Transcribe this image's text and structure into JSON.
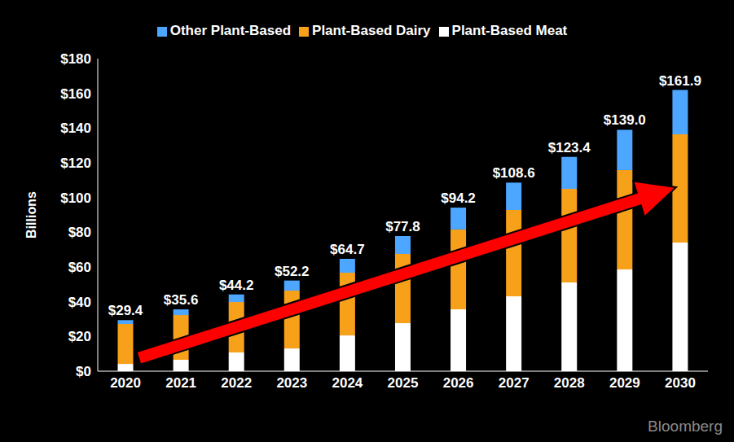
{
  "chart_data": {
    "type": "bar",
    "stacked": true,
    "categories": [
      "2020",
      "2021",
      "2022",
      "2023",
      "2024",
      "2025",
      "2026",
      "2027",
      "2028",
      "2029",
      "2030"
    ],
    "series": [
      {
        "name": "Plant-Based Meat",
        "color": "#ffffff",
        "values": [
          4.2,
          6.6,
          10.8,
          13.1,
          20.6,
          27.7,
          35.6,
          43.1,
          51.1,
          58.6,
          74.1
        ]
      },
      {
        "name": "Plant-Based Dairy",
        "color": "#f7a11a",
        "values": [
          23.0,
          25.7,
          29.0,
          33.3,
          36.1,
          39.8,
          46.0,
          49.7,
          53.9,
          57.2,
          62.3
        ]
      },
      {
        "name": "Other Plant-Based",
        "color": "#4da6ff",
        "values": [
          2.2,
          3.3,
          4.4,
          5.8,
          8.0,
          10.3,
          12.6,
          15.8,
          18.4,
          23.2,
          25.5
        ]
      }
    ],
    "totals": [
      29.4,
      35.6,
      44.2,
      52.2,
      64.7,
      77.8,
      94.2,
      108.6,
      123.4,
      139.0,
      161.9
    ],
    "total_labels": [
      "$29.4",
      "$35.6",
      "$44.2",
      "$52.2",
      "$64.7",
      "$77.8",
      "$94.2",
      "$108.6",
      "$123.4",
      "$139.0",
      "$161.9"
    ],
    "y_label": "Billions",
    "ylim": [
      0,
      180
    ],
    "yticks": [
      {
        "value": 0,
        "label": "$0"
      },
      {
        "value": 20,
        "label": "$20"
      },
      {
        "value": 40,
        "label": "$40"
      },
      {
        "value": 60,
        "label": "$60"
      },
      {
        "value": 80,
        "label": "$80"
      },
      {
        "value": 100,
        "label": "$100"
      },
      {
        "value": 120,
        "label": "$120"
      },
      {
        "value": 140,
        "label": "$140"
      },
      {
        "value": 160,
        "label": "$160"
      },
      {
        "value": 180,
        "label": "$180"
      }
    ],
    "grid": false,
    "legend": "top",
    "source": "Bloomberg"
  }
}
